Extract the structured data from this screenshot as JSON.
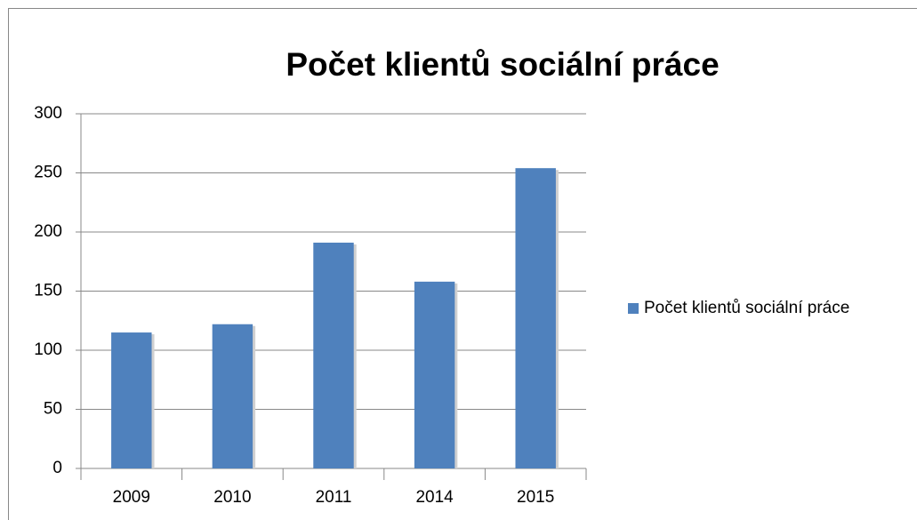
{
  "chart_data": {
    "type": "bar",
    "title": "Počet klientů sociální práce",
    "categories": [
      "2009",
      "2010",
      "2011",
      "2014",
      "2015"
    ],
    "series": [
      {
        "name": "Počet klientů sociální práce",
        "color": "#4f81bd",
        "values": [
          115,
          122,
          191,
          158,
          254
        ]
      }
    ],
    "ylim": [
      0,
      300
    ],
    "yticks": [
      0,
      50,
      100,
      150,
      200,
      250,
      300
    ],
    "grid": true,
    "legend": "right"
  }
}
